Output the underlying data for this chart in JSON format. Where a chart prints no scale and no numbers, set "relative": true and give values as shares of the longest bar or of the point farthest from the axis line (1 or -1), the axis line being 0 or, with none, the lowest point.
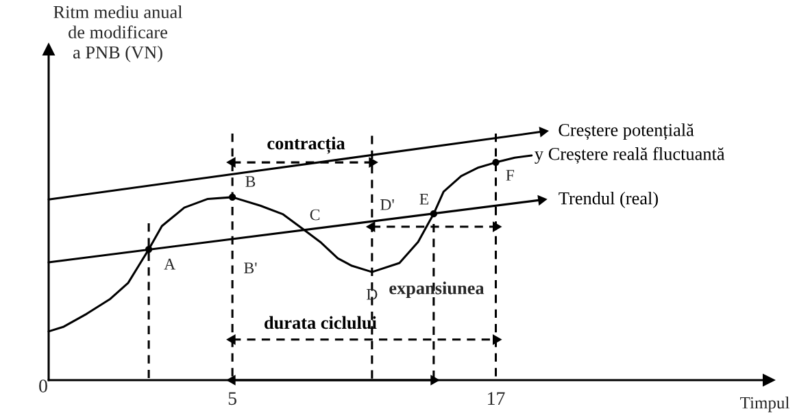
{
  "chart_data": {
    "type": "line",
    "relative": true,
    "xlabel": "Timpul",
    "ylabel": "Ritm mediu anual\nde modificare\na PNB (VN)",
    "xlim": [
      -3.37,
      29.44
    ],
    "xticks": [
      5,
      17
    ],
    "tick_labels": "x",
    "series": [
      {
        "name": "Creștere potențială",
        "color": "#000000",
        "x": [
          -3.37,
          19.14
        ],
        "values": [
          0.727,
          1.0
        ],
        "marker": "triangle",
        "line_style": "solid"
      },
      {
        "name": "y Creștere reală fluctuantă",
        "color": "#000000",
        "x": [
          -3.37,
          -2.68,
          -1.63,
          -0.59,
          0.25,
          0.75,
          1.19,
          1.79,
          2.81,
          3.88,
          5.0,
          6.27,
          7.31,
          8.24,
          9.0,
          9.8,
          10.44,
          11.36,
          12.61,
          13.46,
          13.98,
          14.17,
          14.62,
          15.42,
          16.17,
          17.0,
          17.86,
          18.63
        ],
        "values": [
          0.196,
          0.215,
          0.267,
          0.325,
          0.391,
          0.463,
          0.526,
          0.62,
          0.694,
          0.729,
          0.736,
          0.702,
          0.667,
          0.606,
          0.556,
          0.49,
          0.46,
          0.435,
          0.471,
          0.556,
          0.639,
          0.669,
          0.758,
          0.821,
          0.854,
          0.876,
          0.895,
          0.904
        ],
        "line_style": "solid"
      },
      {
        "name": "Trendul (real)",
        "color": "#000000",
        "x": [
          -3.37,
          19.07
        ],
        "values": [
          0.474,
          0.725
        ],
        "marker": "triangle",
        "line_style": "solid"
      },
      {
        "type": "scatter",
        "color": "#000000",
        "x": [
          1.19,
          5.0,
          14.17,
          17.0
        ],
        "values": [
          0.526,
          0.736,
          0.669,
          0.876
        ],
        "marker": "circle"
      },
      {
        "color": "#000000",
        "x": [
          5.0,
          14.17
        ],
        "values": [
          0,
          0
        ],
        "line_style": "solid",
        "marker": "triangle"
      },
      {
        "color": "#000000",
        "x": [
          1.19,
          1.19
        ],
        "values": [
          0.631,
          0
        ],
        "line_style": "dashed"
      },
      {
        "color": "#000000",
        "x": [
          5.0,
          5.0
        ],
        "values": [
          0.992,
          0
        ],
        "line_style": "dashed"
      },
      {
        "color": "#000000",
        "x": [
          11.36,
          11.36
        ],
        "values": [
          0.983,
          0
        ],
        "line_style": "dashed"
      },
      {
        "color": "#000000",
        "x": [
          14.17,
          14.17
        ],
        "values": [
          0.628,
          0
        ],
        "line_style": "dashed"
      },
      {
        "color": "#000000",
        "x": [
          17.0,
          17.0
        ],
        "values": [
          0.992,
          0
        ],
        "line_style": "dashed"
      },
      {
        "name": "contracția",
        "color": "#000000",
        "x": [
          5.0,
          11.36
        ],
        "values": [
          0.876,
          0.876
        ],
        "line_style": "dashed",
        "marker": "triangle"
      },
      {
        "color": "#000000",
        "x": [
          11.36,
          17.0
        ],
        "values": [
          0.617,
          0.617
        ],
        "line_style": "dashed",
        "marker": "triangle"
      },
      {
        "name": "durata ciclului",
        "color": "#000000",
        "x": [
          5.0,
          17.0
        ],
        "values": [
          0.163,
          0.163
        ],
        "line_style": "dashed",
        "marker": "triangle"
      }
    ],
    "ref_lines": [
      {
        "axis": "x",
        "value": -3.37,
        "color": "#000000"
      }
    ],
    "annotations": [
      {
        "text": "A",
        "x": 1.19,
        "y": 0.526
      },
      {
        "text": "B",
        "x": 5.0,
        "y": 0.736
      },
      {
        "text": "C",
        "x": 8.24,
        "y": 0.606
      },
      {
        "text": "D",
        "x": 11.36,
        "y": 0.435
      },
      {
        "text": "D'",
        "x": 11.36,
        "y": 0.639
      },
      {
        "text": "E",
        "x": 14.17,
        "y": 0.669
      },
      {
        "text": "F",
        "x": 17.0,
        "y": 0.876
      },
      {
        "text": "B'",
        "x": 5.0,
        "y": 0.568
      },
      "expansiunea",
      "0"
    ]
  }
}
